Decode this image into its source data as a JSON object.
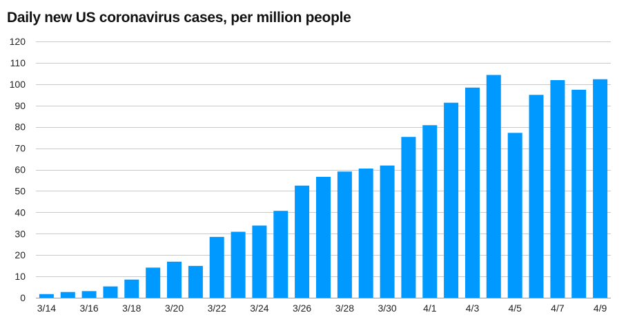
{
  "chart_data": {
    "type": "bar",
    "title": "Daily new US coronavirus cases, per million people",
    "xlabel": "",
    "ylabel": "",
    "ylim": [
      0,
      120
    ],
    "yticks": [
      0,
      10,
      20,
      30,
      40,
      50,
      60,
      70,
      80,
      90,
      100,
      110,
      120
    ],
    "grid": true,
    "bar_color": "#0099ff",
    "categories": [
      "3/14",
      "3/15",
      "3/16",
      "3/17",
      "3/18",
      "3/19",
      "3/20",
      "3/21",
      "3/22",
      "3/23",
      "3/24",
      "3/25",
      "3/26",
      "3/27",
      "3/28",
      "3/29",
      "3/30",
      "3/31",
      "4/1",
      "4/2",
      "4/3",
      "4/4",
      "4/5",
      "4/6",
      "4/7",
      "4/8",
      "4/9"
    ],
    "x_tick_labels": [
      "3/14",
      "",
      "3/16",
      "",
      "3/18",
      "",
      "3/20",
      "",
      "3/22",
      "",
      "3/24",
      "",
      "3/26",
      "",
      "3/28",
      "",
      "3/30",
      "",
      "4/1",
      "",
      "4/3",
      "",
      "4/5",
      "",
      "4/7",
      "",
      "4/9"
    ],
    "values": [
      1.7,
      2.7,
      3.1,
      5.3,
      8.5,
      14.1,
      16.9,
      14.9,
      28.5,
      30.9,
      33.8,
      40.7,
      52.5,
      56.6,
      59.1,
      60.5,
      61.9,
      75.3,
      80.8,
      91.3,
      98.4,
      104.3,
      77.2,
      95.0,
      101.9,
      97.4,
      102.3
    ]
  }
}
